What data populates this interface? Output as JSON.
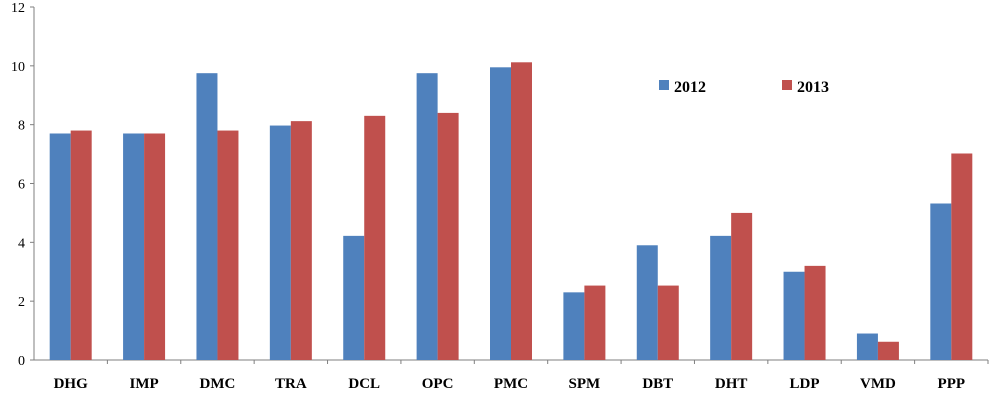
{
  "chart_data": {
    "type": "bar",
    "title": "",
    "xlabel": "",
    "ylabel": "",
    "ylim": [
      0,
      12
    ],
    "yticks": [
      0,
      2,
      4,
      6,
      8,
      10,
      12
    ],
    "grid": false,
    "legend_position": "top-right",
    "categories": [
      "DHG",
      "IMP",
      "DMC",
      "TRA",
      "DCL",
      "OPC",
      "PMC",
      "SPM",
      "DBT",
      "DHT",
      "LDP",
      "VMD",
      "PPP"
    ],
    "series": [
      {
        "name": "2012",
        "color": "#4F81BD",
        "values": [
          7.7,
          7.7,
          9.75,
          7.97,
          4.22,
          9.75,
          9.95,
          2.3,
          3.9,
          4.22,
          3.0,
          0.9,
          5.32
        ]
      },
      {
        "name": "2013",
        "color": "#C0504D",
        "values": [
          7.8,
          7.7,
          7.8,
          8.12,
          8.3,
          8.4,
          10.12,
          2.53,
          2.53,
          5.0,
          3.2,
          0.62,
          7.02
        ]
      }
    ]
  }
}
